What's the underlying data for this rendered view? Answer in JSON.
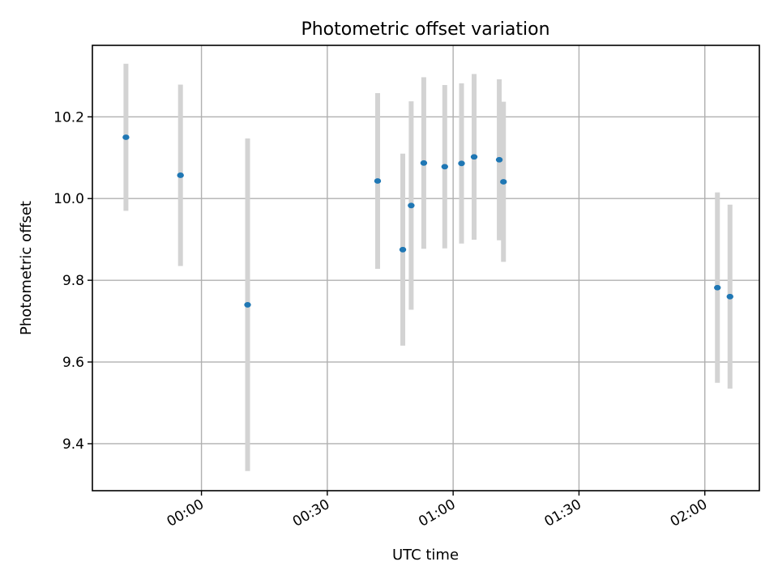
{
  "chart_data": {
    "type": "scatter",
    "title": "Photometric offset variation",
    "xlabel": "UTC time",
    "ylabel": "Photometric offset",
    "x_axis_kind": "time",
    "x_ticks": [
      "00:00",
      "00:30",
      "01:00",
      "01:30",
      "02:00"
    ],
    "xlim": [
      "-00:26",
      "02:13"
    ],
    "y_ticks": [
      "9.4",
      "9.6",
      "9.8",
      "10.0",
      "10.2"
    ],
    "ylim": [
      9.285,
      10.375
    ],
    "grid": true,
    "colors": {
      "points": "#1f77b4",
      "errorbars": "#d3d3d3",
      "grid": "#b0b0b0"
    },
    "series": [
      {
        "points": [
          {
            "x": "-00:18",
            "y": 10.15,
            "yerr": 0.18
          },
          {
            "x": "-00:05",
            "y": 10.057,
            "yerr": 0.222
          },
          {
            "x": "00:11",
            "y": 9.74,
            "yerr": 0.407
          },
          {
            "x": "00:42",
            "y": 10.043,
            "yerr": 0.215
          },
          {
            "x": "00:48",
            "y": 9.875,
            "yerr": 0.235
          },
          {
            "x": "00:50",
            "y": 9.983,
            "yerr": 0.255
          },
          {
            "x": "00:53",
            "y": 10.087,
            "yerr": 0.21
          },
          {
            "x": "00:58",
            "y": 10.078,
            "yerr": 0.2
          },
          {
            "x": "01:02",
            "y": 10.086,
            "yerr": 0.196
          },
          {
            "x": "01:05",
            "y": 10.102,
            "yerr": 0.203
          },
          {
            "x": "01:11",
            "y": 10.095,
            "yerr": 0.197
          },
          {
            "x": "01:12",
            "y": 10.041,
            "yerr": 0.196
          },
          {
            "x": "02:03",
            "y": 9.782,
            "yerr": 0.233
          },
          {
            "x": "02:06",
            "y": 9.76,
            "yerr": 0.225
          }
        ]
      }
    ]
  }
}
